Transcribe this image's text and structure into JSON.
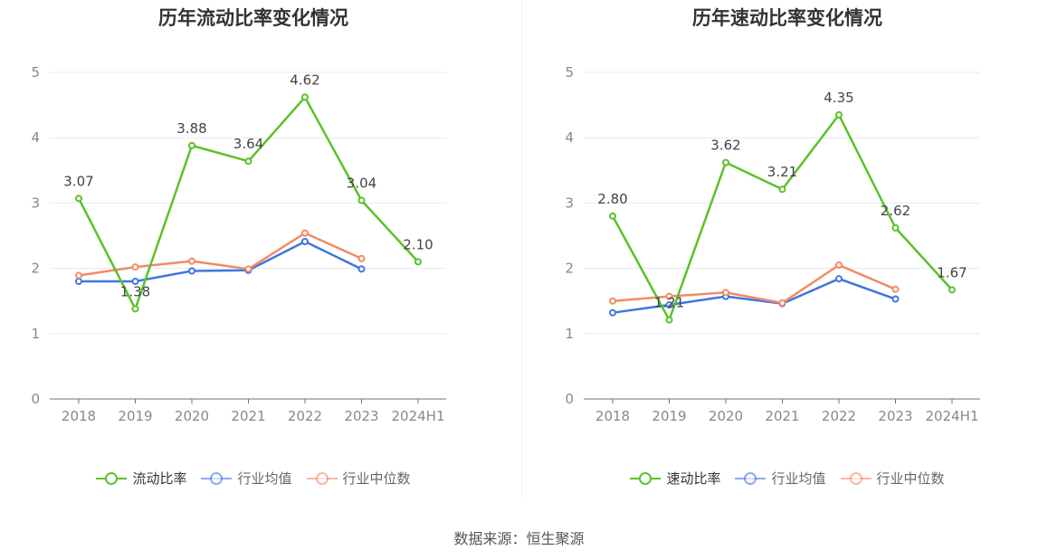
{
  "source": "数据来源：恒生聚源",
  "chart_data": [
    {
      "type": "line",
      "title": "历年流动比率变化情况",
      "categories": [
        "2018",
        "2019",
        "2020",
        "2021",
        "2022",
        "2023",
        "2024H1"
      ],
      "ylim": [
        0,
        5
      ],
      "yticks": [
        "0",
        "1",
        "2",
        "3",
        "4",
        "5"
      ],
      "grid": true,
      "legend_position": "bottom",
      "series": [
        {
          "name": "流动比率",
          "color": "#5ac229",
          "values": [
            3.07,
            1.38,
            3.88,
            3.64,
            4.62,
            3.04,
            2.1
          ],
          "labels": [
            "3.07",
            "1.38",
            "3.88",
            "3.64",
            "4.62",
            "3.04",
            "2.10"
          ]
        },
        {
          "name": "行业均值",
          "color": "#3f77df",
          "values": [
            1.8,
            1.8,
            1.96,
            1.97,
            2.41,
            1.99,
            null
          ]
        },
        {
          "name": "行业中位数",
          "color": "#f28a66",
          "values": [
            1.89,
            2.02,
            2.11,
            1.99,
            2.54,
            2.15,
            null
          ]
        }
      ]
    },
    {
      "type": "line",
      "title": "历年速动比率变化情况",
      "categories": [
        "2018",
        "2019",
        "2020",
        "2021",
        "2022",
        "2023",
        "2024H1"
      ],
      "ylim": [
        0,
        5
      ],
      "yticks": [
        "0",
        "1",
        "2",
        "3",
        "4",
        "5"
      ],
      "grid": true,
      "legend_position": "bottom",
      "series": [
        {
          "name": "速动比率",
          "color": "#5ac229",
          "values": [
            2.8,
            1.21,
            3.62,
            3.21,
            4.35,
            2.62,
            1.67
          ],
          "labels": [
            "2.80",
            "1.21",
            "3.62",
            "3.21",
            "4.35",
            "2.62",
            "1.67"
          ]
        },
        {
          "name": "行业均值",
          "color": "#3f77df",
          "values": [
            1.32,
            1.44,
            1.57,
            1.46,
            1.84,
            1.53,
            null
          ]
        },
        {
          "name": "行业中位数",
          "color": "#f28a66",
          "values": [
            1.5,
            1.57,
            1.63,
            1.47,
            2.05,
            1.68,
            null
          ]
        }
      ]
    }
  ]
}
